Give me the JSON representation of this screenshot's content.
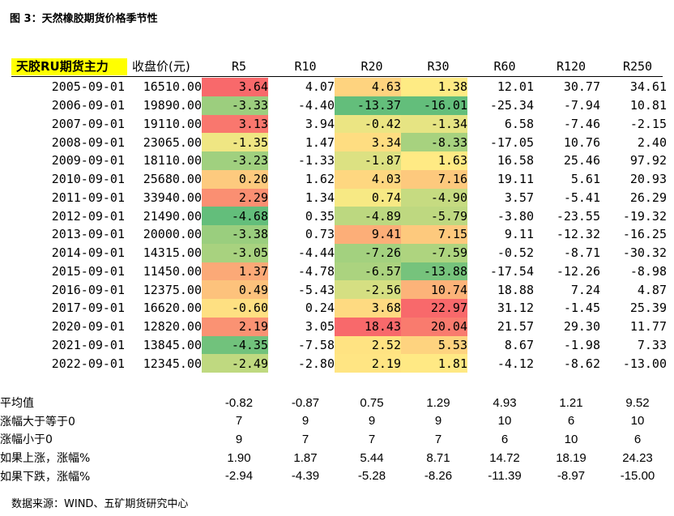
{
  "figure": {
    "title": "图 3：天然橡胶期货价格季节性",
    "source": "数据来源：WIND、五矿期货研究中心"
  },
  "header": {
    "series_label": "天胶RU期货主力",
    "close_label": "收盘价(元)",
    "columns": [
      "R5",
      "R10",
      "R20",
      "R30",
      "R60",
      "R120",
      "R250"
    ]
  },
  "rows": [
    {
      "date": "2005-09-01",
      "close": "16510.00",
      "values": [
        "3.64",
        "4.07",
        "4.63",
        "1.38",
        "12.01",
        "30.77",
        "34.61"
      ]
    },
    {
      "date": "2006-09-01",
      "close": "19890.00",
      "values": [
        "-3.33",
        "-4.40",
        "-13.37",
        "-16.01",
        "-25.34",
        "-7.94",
        "10.81"
      ]
    },
    {
      "date": "2007-09-01",
      "close": "19110.00",
      "values": [
        "3.13",
        "3.94",
        "-0.42",
        "-1.34",
        "6.58",
        "-7.46",
        "-2.15"
      ]
    },
    {
      "date": "2008-09-01",
      "close": "23065.00",
      "values": [
        "-1.35",
        "1.47",
        "3.34",
        "-8.33",
        "-17.05",
        "10.76",
        "2.40"
      ]
    },
    {
      "date": "2009-09-01",
      "close": "18110.00",
      "values": [
        "-3.23",
        "-1.33",
        "-1.87",
        "1.63",
        "16.58",
        "25.46",
        "97.92"
      ]
    },
    {
      "date": "2010-09-01",
      "close": "25680.00",
      "values": [
        "0.20",
        "1.62",
        "4.03",
        "7.16",
        "19.11",
        "5.61",
        "20.93"
      ]
    },
    {
      "date": "2011-09-01",
      "close": "33940.00",
      "values": [
        "2.29",
        "1.34",
        "0.74",
        "-4.90",
        "3.57",
        "-5.41",
        "26.29"
      ]
    },
    {
      "date": "2012-09-01",
      "close": "21490.00",
      "values": [
        "-4.68",
        "0.35",
        "-4.89",
        "-5.79",
        "-3.80",
        "-23.55",
        "-19.32"
      ]
    },
    {
      "date": "2013-09-01",
      "close": "20000.00",
      "values": [
        "-3.38",
        "0.73",
        "9.41",
        "7.15",
        "9.11",
        "-12.32",
        "-16.25"
      ]
    },
    {
      "date": "2014-09-01",
      "close": "14315.00",
      "values": [
        "-3.05",
        "-4.44",
        "-7.26",
        "-7.59",
        "-0.52",
        "-8.71",
        "-30.32"
      ]
    },
    {
      "date": "2015-09-01",
      "close": "11450.00",
      "values": [
        "1.37",
        "-4.78",
        "-6.57",
        "-13.88",
        "-17.54",
        "-12.26",
        "-8.98"
      ]
    },
    {
      "date": "2016-09-01",
      "close": "12375.00",
      "values": [
        "0.49",
        "-5.43",
        "-2.56",
        "10.74",
        "18.88",
        "7.24",
        "4.87"
      ]
    },
    {
      "date": "2017-09-01",
      "close": "16620.00",
      "values": [
        "-0.60",
        "0.24",
        "3.68",
        "22.97",
        "31.12",
        "-1.45",
        "25.39"
      ]
    },
    {
      "date": "2020-09-01",
      "close": "12820.00",
      "values": [
        "2.19",
        "3.05",
        "18.43",
        "20.04",
        "21.57",
        "29.30",
        "11.77"
      ]
    },
    {
      "date": "2021-09-01",
      "close": "13845.00",
      "values": [
        "-4.35",
        "-7.58",
        "2.52",
        "5.53",
        "8.67",
        "-1.98",
        "7.33"
      ]
    },
    {
      "date": "2022-09-01",
      "close": "12345.00",
      "values": [
        "-2.49",
        "-2.80",
        "2.19",
        "1.81",
        "-4.12",
        "-8.62",
        "-13.00"
      ]
    }
  ],
  "stats": [
    {
      "label": "平均值",
      "values": [
        "-0.82",
        "-0.87",
        "0.75",
        "1.29",
        "4.93",
        "1.21",
        "9.52"
      ]
    },
    {
      "label": "涨幅大于等于0",
      "values": [
        "7",
        "9",
        "9",
        "9",
        "10",
        "6",
        "10"
      ]
    },
    {
      "label": "涨幅小于0",
      "values": [
        "9",
        "7",
        "7",
        "7",
        "6",
        "10",
        "6"
      ]
    },
    {
      "label": "如果上涨，涨幅%",
      "values": [
        "1.90",
        "1.87",
        "5.44",
        "8.71",
        "14.72",
        "18.19",
        "24.23"
      ]
    },
    {
      "label": "如果下跌，涨幅%",
      "values": [
        "-2.94",
        "-4.39",
        "-5.28",
        "-8.26",
        "-11.39",
        "-8.97",
        "-15.00"
      ]
    }
  ],
  "heatmap": {
    "colored_columns": [
      "R5",
      "R20",
      "R30"
    ],
    "colors": {
      "low": "#63be7b",
      "mid": "#ffeb84",
      "high": "#f8696b"
    }
  }
}
